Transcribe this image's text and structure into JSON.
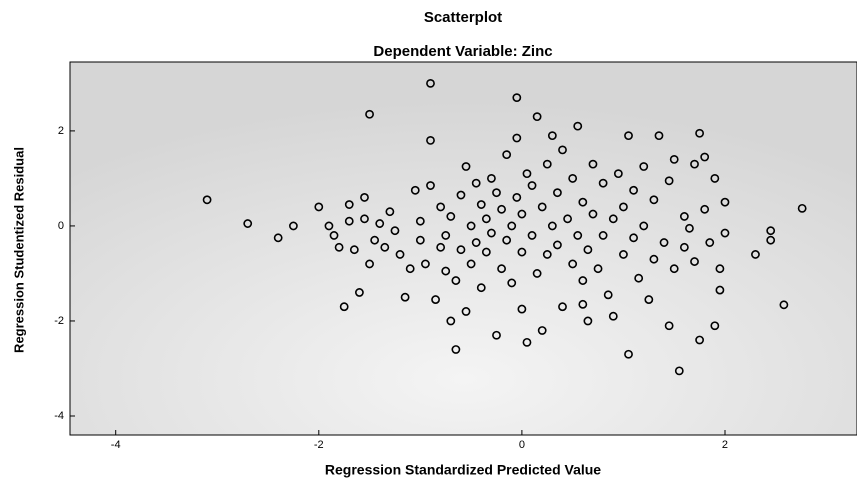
{
  "chart_data": {
    "type": "scatter",
    "title": "Scatterplot",
    "subtitle": "Dependent Variable: Zinc",
    "x_label": "Regression Standardized Predicted Value",
    "y_label": "Regression Studentized Residual",
    "xlim": [
      -4.45,
      3.3
    ],
    "ylim": [
      -4.4,
      3.45
    ],
    "xticks": [
      -4,
      -2,
      0,
      2
    ],
    "yticks": [
      2,
      0,
      -2,
      -4
    ],
    "color": "#000000",
    "x": [
      -3.1,
      -2.7,
      -2.4,
      -2.25,
      -2.0,
      -1.85,
      -1.8,
      -1.75,
      -1.7,
      -1.65,
      -1.6,
      -1.55,
      -1.5,
      -1.55,
      -1.45,
      -1.4,
      -1.35,
      -1.3,
      -1.25,
      -1.2,
      -1.5,
      -1.15,
      -1.1,
      -1.05,
      -1.0,
      -1.0,
      -0.95,
      -0.9,
      -0.9,
      -0.85,
      -0.8,
      -0.8,
      -0.75,
      -0.75,
      -0.7,
      -0.7,
      -0.65,
      -0.65,
      -0.6,
      -0.6,
      -0.55,
      -0.9,
      -0.55,
      -0.5,
      -0.5,
      -0.45,
      -0.45,
      -0.4,
      -0.4,
      -0.35,
      -0.35,
      -0.3,
      -0.3,
      -0.25,
      -0.25,
      -0.2,
      -0.2,
      -0.15,
      -0.15,
      -0.1,
      -0.1,
      -0.05,
      -0.05,
      0.0,
      0.0,
      -0.05,
      0.05,
      0.05,
      0.1,
      0.1,
      0.15,
      0.15,
      0.2,
      0.2,
      0.25,
      0.25,
      0.3,
      0.3,
      0.35,
      0.35,
      0.4,
      0.4,
      0.45,
      0.5,
      0.5,
      0.55,
      0.55,
      0.6,
      0.6,
      0.65,
      0.65,
      0.7,
      0.7,
      0.75,
      0.8,
      0.8,
      0.85,
      0.9,
      0.9,
      0.95,
      1.0,
      1.0,
      1.05,
      1.05,
      1.1,
      1.1,
      1.15,
      1.2,
      1.2,
      1.25,
      1.3,
      1.3,
      1.35,
      1.4,
      1.45,
      1.45,
      1.5,
      1.5,
      1.55,
      1.6,
      1.6,
      1.65,
      1.7,
      1.7,
      1.75,
      1.75,
      1.8,
      1.85,
      1.9,
      1.95,
      2.0,
      2.0,
      1.8,
      1.95,
      2.45,
      1.9,
      2.45,
      2.3,
      2.58,
      2.76,
      -1.9,
      -1.7,
      0.0,
      0.6
    ],
    "y": [
      0.55,
      0.05,
      -0.25,
      0.0,
      0.4,
      -0.2,
      -0.45,
      -1.7,
      0.45,
      -0.5,
      -1.4,
      0.6,
      -0.8,
      0.15,
      -0.3,
      0.05,
      -0.45,
      0.3,
      -0.1,
      -0.6,
      2.35,
      -1.5,
      -0.9,
      0.75,
      -0.3,
      0.1,
      -0.8,
      1.8,
      0.85,
      -1.55,
      -0.45,
      0.4,
      -0.2,
      -0.95,
      -2.0,
      0.2,
      -1.15,
      -2.6,
      0.65,
      -0.5,
      1.25,
      3.0,
      -1.8,
      -0.8,
      0.0,
      0.9,
      -0.35,
      0.45,
      -1.3,
      -0.55,
      0.15,
      1.0,
      -0.15,
      -2.3,
      0.7,
      -0.9,
      0.35,
      -0.3,
      1.5,
      0.0,
      -1.2,
      0.6,
      1.85,
      -0.55,
      0.25,
      2.7,
      -2.45,
      1.1,
      -0.2,
      0.85,
      -1.0,
      2.3,
      0.4,
      -2.2,
      1.3,
      -0.6,
      0.0,
      1.9,
      -0.4,
      0.7,
      -1.7,
      1.6,
      0.15,
      -0.8,
      1.0,
      -0.2,
      2.1,
      0.5,
      -1.15,
      -2.0,
      -0.5,
      0.25,
      1.3,
      -0.9,
      0.9,
      -0.2,
      -1.45,
      0.15,
      -1.9,
      1.1,
      -0.6,
      0.4,
      -2.7,
      1.9,
      -0.25,
      0.75,
      -1.1,
      1.25,
      0.0,
      -1.55,
      0.55,
      -0.7,
      1.9,
      -0.35,
      0.95,
      -2.1,
      -0.9,
      1.4,
      -3.05,
      0.2,
      -0.45,
      -0.05,
      1.3,
      -0.75,
      1.95,
      -2.4,
      0.35,
      -0.35,
      1.0,
      -0.9,
      -0.15,
      0.5,
      1.45,
      -1.35,
      -0.1,
      -2.1,
      -0.3,
      -0.6,
      -1.66,
      0.37,
      0.0,
      0.1,
      -1.75,
      -1.65
    ]
  }
}
